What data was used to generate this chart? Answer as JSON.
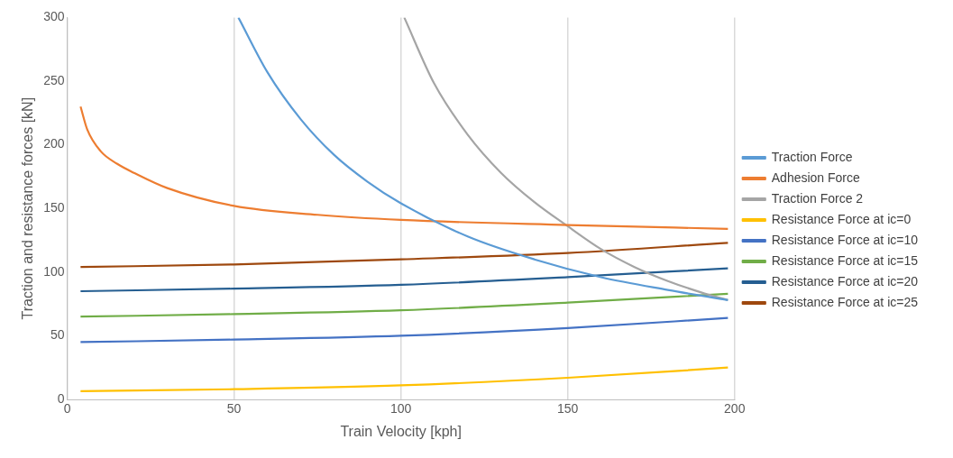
{
  "chart_data": {
    "type": "line",
    "xlabel": "Train Velocity [kph]",
    "ylabel": "Traction and resistance forces [kN]",
    "xlim": [
      0,
      200
    ],
    "xticks": [
      0,
      50,
      100,
      150,
      200
    ],
    "ylim": [
      0,
      300
    ],
    "yticks": [
      0,
      50,
      100,
      150,
      200,
      250,
      300
    ],
    "grid": "x",
    "legend": "right",
    "marker": "none",
    "line_style": "solid",
    "series": [
      {
        "name": "Traction Force",
        "color": "#5b9bd5",
        "x": [
          51.3,
          60,
          70,
          80,
          90,
          100,
          120,
          140,
          160,
          180,
          198
        ],
        "values": [
          300,
          257,
          220,
          192,
          171,
          154,
          128,
          110,
          96,
          86,
          78
        ]
      },
      {
        "name": "Adhesion Force",
        "color": "#ed7d31",
        "x": [
          4,
          6,
          10,
          15,
          20,
          30,
          50,
          75,
          100,
          150,
          198
        ],
        "values": [
          230,
          212,
          195,
          185,
          178,
          166,
          152,
          145,
          141,
          137,
          134
        ]
      },
      {
        "name": "Traction Force 2",
        "color": "#a5a5a5",
        "x": [
          101,
          110,
          120,
          130,
          140,
          150,
          160,
          170,
          180,
          190,
          198
        ],
        "values": [
          300,
          248,
          208,
          178,
          155,
          136,
          118,
          104,
          93,
          84,
          78
        ]
      },
      {
        "name": "Resistance Force at ic=0",
        "color": "#ffc000",
        "x": [
          4,
          50,
          100,
          150,
          198
        ],
        "values": [
          6.5,
          8,
          11,
          17,
          25
        ]
      },
      {
        "name": "Resistance Force at ic=10",
        "color": "#4472c4",
        "x": [
          4,
          50,
          100,
          150,
          198
        ],
        "values": [
          45,
          47,
          50,
          56,
          64
        ]
      },
      {
        "name": "Resistance Force at ic=15",
        "color": "#70ad47",
        "x": [
          4,
          50,
          100,
          150,
          198
        ],
        "values": [
          65,
          67,
          70,
          76,
          83
        ]
      },
      {
        "name": "Resistance Force at ic=20",
        "color": "#255e91",
        "x": [
          4,
          50,
          100,
          150,
          198
        ],
        "values": [
          85,
          87,
          90,
          96,
          103
        ]
      },
      {
        "name": "Resistance Force at ic=25",
        "color": "#9e480e",
        "x": [
          4,
          50,
          100,
          150,
          198
        ],
        "values": [
          104,
          106,
          110,
          115,
          123
        ]
      }
    ]
  }
}
